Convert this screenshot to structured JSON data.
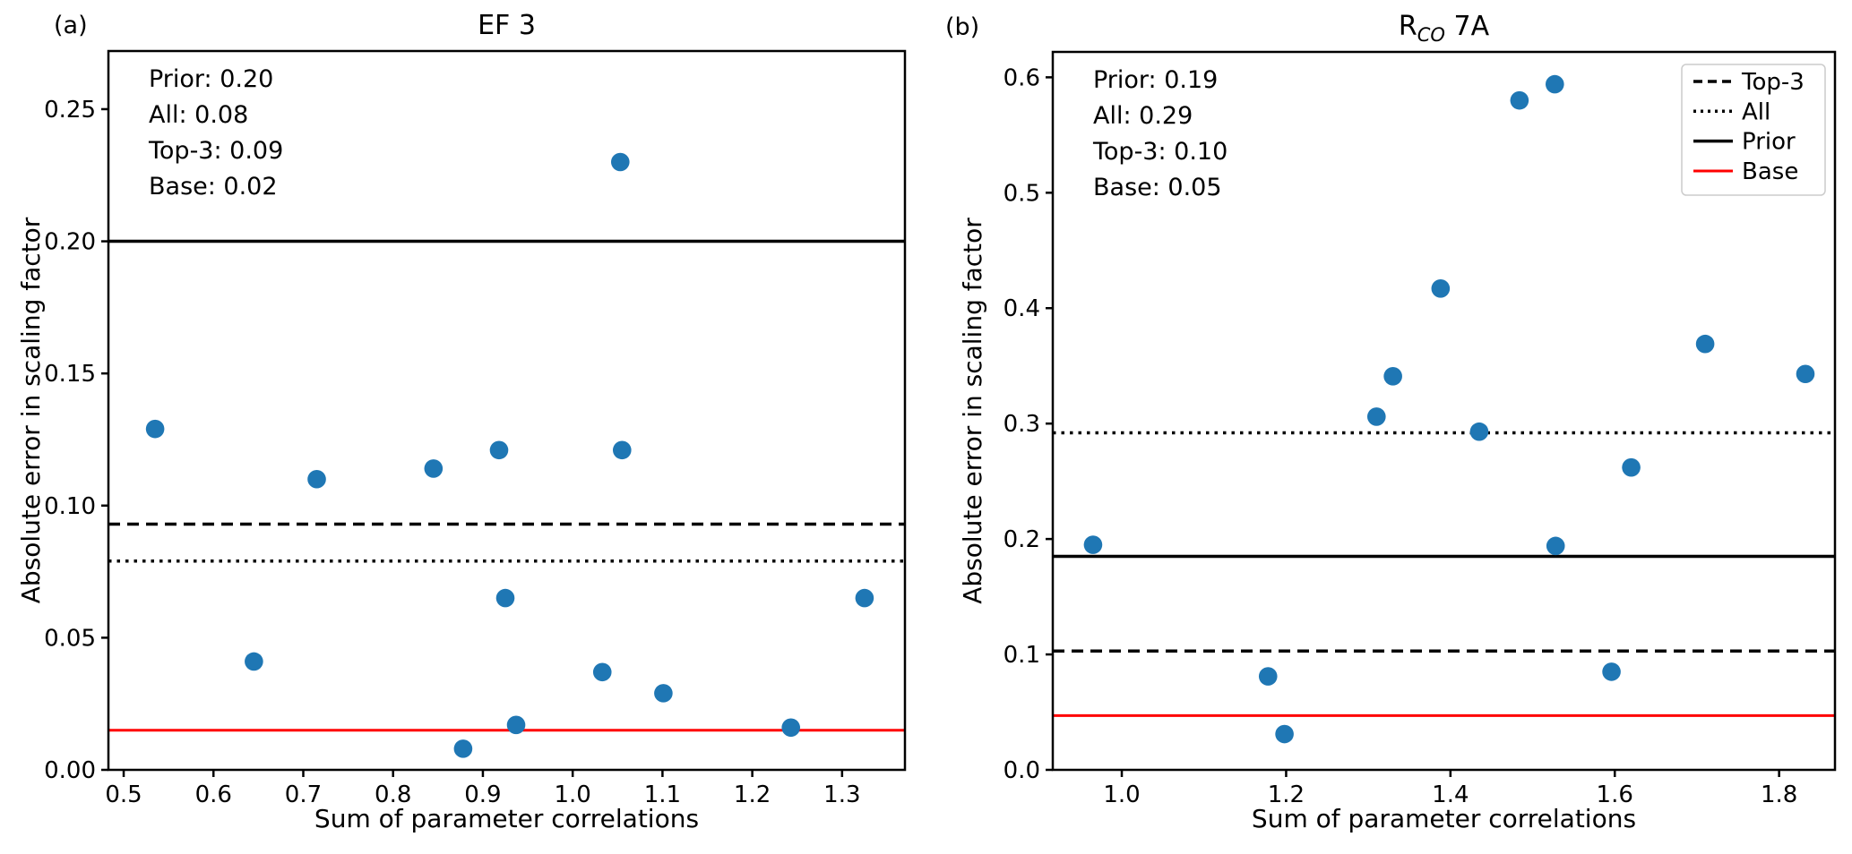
{
  "figure": {
    "background": "#ffffff",
    "point_color": "#1f77b4",
    "axis_color": "#000000",
    "base_line_color": "#ff0000",
    "legend_border_color": "#cccccc"
  },
  "chart_data": [
    {
      "type": "scatter",
      "panel_label": "(a)",
      "title": "EF 3",
      "xlabel": "Sum of parameter correlations",
      "ylabel": "Absolute error in scaling factor",
      "xlim": [
        0.483,
        1.37
      ],
      "ylim": [
        0,
        0.272
      ],
      "xticks": [
        0.5,
        0.6,
        0.7,
        0.8,
        0.9,
        1.0,
        1.1,
        1.2,
        1.3
      ],
      "yticks": [
        0.0,
        0.05,
        0.1,
        0.15,
        0.2,
        0.25
      ],
      "x_decimals": 1,
      "y_decimals": 2,
      "grid": false,
      "annotation_lines": [
        "Prior: 0.20",
        "All: 0.08",
        "Top-3: 0.09",
        "Base: 0.02"
      ],
      "hlines": [
        {
          "name": "Prior",
          "y": 0.2,
          "style": "solid",
          "color": "#000000"
        },
        {
          "name": "Top-3",
          "y": 0.093,
          "style": "dashed",
          "color": "#000000"
        },
        {
          "name": "All",
          "y": 0.079,
          "style": "dotted",
          "color": "#000000"
        },
        {
          "name": "Base",
          "y": 0.015,
          "style": "solid",
          "color": "#ff0000"
        }
      ],
      "points": [
        [
          0.535,
          0.129
        ],
        [
          0.645,
          0.041
        ],
        [
          0.715,
          0.11
        ],
        [
          0.845,
          0.114
        ],
        [
          0.878,
          0.008
        ],
        [
          0.918,
          0.121
        ],
        [
          0.925,
          0.065
        ],
        [
          0.937,
          0.017
        ],
        [
          1.033,
          0.037
        ],
        [
          1.053,
          0.23
        ],
        [
          1.055,
          0.121
        ],
        [
          1.101,
          0.029
        ],
        [
          1.243,
          0.016
        ],
        [
          1.325,
          0.065
        ]
      ],
      "legend": null
    },
    {
      "type": "scatter",
      "panel_label": "(b)",
      "title": "R_CO 7A",
      "title_rich": [
        {
          "text": "R",
          "style": "normal"
        },
        {
          "text": "CO",
          "style": "subscript-italic"
        },
        {
          "text": " 7A",
          "style": "normal"
        }
      ],
      "xlabel": "Sum of parameter correlations",
      "ylabel": "Absolute error in scaling factor",
      "xlim": [
        0.916,
        1.868
      ],
      "ylim": [
        0,
        0.622
      ],
      "xticks": [
        1.0,
        1.2,
        1.4,
        1.6,
        1.8
      ],
      "yticks": [
        0.0,
        0.1,
        0.2,
        0.3,
        0.4,
        0.5,
        0.6
      ],
      "x_decimals": 1,
      "y_decimals": 1,
      "grid": false,
      "annotation_lines": [
        "Prior: 0.19",
        "All: 0.29",
        "Top-3: 0.10",
        "Base: 0.05"
      ],
      "hlines": [
        {
          "name": "Prior",
          "y": 0.185,
          "style": "solid",
          "color": "#000000"
        },
        {
          "name": "Top-3",
          "y": 0.103,
          "style": "dashed",
          "color": "#000000"
        },
        {
          "name": "All",
          "y": 0.292,
          "style": "dotted",
          "color": "#000000"
        },
        {
          "name": "Base",
          "y": 0.047,
          "style": "solid",
          "color": "#ff0000"
        }
      ],
      "points": [
        [
          0.965,
          0.195
        ],
        [
          1.178,
          0.081
        ],
        [
          1.198,
          0.031
        ],
        [
          1.31,
          0.306
        ],
        [
          1.33,
          0.341
        ],
        [
          1.388,
          0.417
        ],
        [
          1.435,
          0.293
        ],
        [
          1.484,
          0.58
        ],
        [
          1.527,
          0.594
        ],
        [
          1.528,
          0.194
        ],
        [
          1.596,
          0.085
        ],
        [
          1.62,
          0.262
        ],
        [
          1.71,
          0.369
        ],
        [
          1.832,
          0.343
        ]
      ],
      "legend": {
        "position": "upper-right",
        "entries": [
          {
            "label": "Top-3",
            "style": "dashed",
            "color": "#000000"
          },
          {
            "label": "All",
            "style": "dotted",
            "color": "#000000"
          },
          {
            "label": "Prior",
            "style": "solid",
            "color": "#000000"
          },
          {
            "label": "Base",
            "style": "solid",
            "color": "#ff0000"
          }
        ]
      }
    }
  ]
}
